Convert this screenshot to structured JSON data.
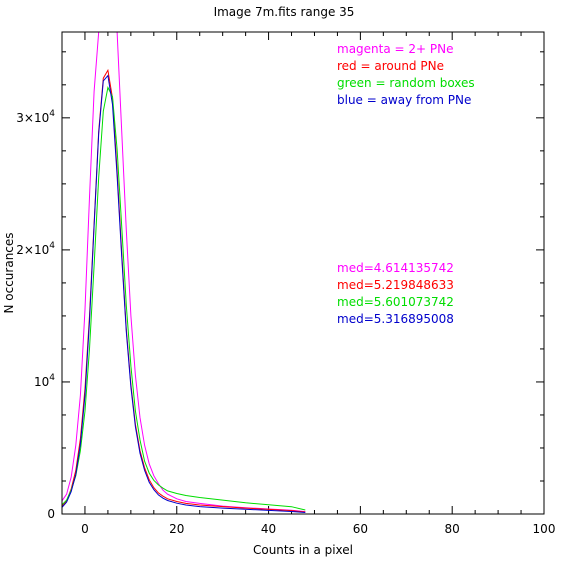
{
  "chart_data": {
    "type": "line",
    "title": "Image 7m.fits   range 35",
    "xlabel": "Counts in a pixel",
    "ylabel": "N occurances",
    "xlim": [
      -5,
      100
    ],
    "ylim": [
      0,
      36500
    ],
    "x_ticks": [
      {
        "value": 0,
        "label": "0"
      },
      {
        "value": 20,
        "label": "20"
      },
      {
        "value": 40,
        "label": "40"
      },
      {
        "value": 60,
        "label": "60"
      },
      {
        "value": 80,
        "label": "80"
      },
      {
        "value": 100,
        "label": "100"
      }
    ],
    "y_ticks": [
      {
        "value": 0,
        "base": "0",
        "exp": ""
      },
      {
        "value": 10000,
        "base": "10",
        "exp": "4"
      },
      {
        "value": 20000,
        "base": "2×10",
        "exp": "4"
      },
      {
        "value": 30000,
        "base": "3×10",
        "exp": "4"
      }
    ],
    "legend": [
      {
        "text": "magenta = 2+ PNe",
        "color": "#ff00ff"
      },
      {
        "text": "red = around PNe",
        "color": "#ff0000"
      },
      {
        "text": "green = random boxes",
        "color": "#00dd00"
      },
      {
        "text": "blue = away from PNe",
        "color": "#0000cc"
      }
    ],
    "medians": [
      {
        "text": "med=4.614135742",
        "color": "#ff00ff"
      },
      {
        "text": "med=5.219848633",
        "color": "#ff0000"
      },
      {
        "text": "med=5.601073742",
        "color": "#00dd00"
      },
      {
        "text": "med=5.316895008",
        "color": "#0000cc"
      }
    ],
    "series": [
      {
        "color": "#ff00ff",
        "x": [
          -5,
          -4,
          -3,
          -2,
          -1,
          0,
          1,
          2,
          3,
          3.5,
          4,
          5,
          6,
          7,
          8,
          9,
          10,
          11,
          12,
          13,
          14,
          15,
          16,
          17,
          18,
          20,
          22,
          25,
          30,
          35,
          40,
          45,
          48
        ],
        "y": [
          1000,
          1500,
          2800,
          5200,
          9000,
          15500,
          24000,
          32000,
          36500,
          40000,
          40000,
          40000,
          40000,
          36500,
          29000,
          21500,
          15000,
          10500,
          7300,
          5200,
          3800,
          2900,
          2300,
          1800,
          1500,
          1150,
          950,
          800,
          600,
          480,
          380,
          280,
          180
        ]
      },
      {
        "color": "#ff0000",
        "x": [
          -5,
          -4,
          -3,
          -2,
          -1,
          0,
          1,
          2,
          3,
          4,
          5,
          6,
          7,
          8,
          9,
          10,
          11,
          12,
          13,
          14,
          15,
          16,
          17,
          18,
          20,
          22,
          25,
          30,
          35,
          40,
          45,
          48
        ],
        "y": [
          600,
          1000,
          1900,
          3300,
          5700,
          9500,
          15000,
          22000,
          29000,
          33000,
          33600,
          31500,
          26000,
          19800,
          14000,
          9800,
          6800,
          4800,
          3500,
          2600,
          2000,
          1600,
          1350,
          1150,
          950,
          800,
          680,
          560,
          450,
          350,
          260,
          150
        ]
      },
      {
        "color": "#00dd00",
        "x": [
          -5,
          -4,
          -3,
          -2,
          -1,
          0,
          1,
          2,
          3,
          4,
          5,
          6,
          7,
          8,
          9,
          10,
          11,
          12,
          13,
          14,
          15,
          16,
          17,
          18,
          20,
          22,
          25,
          30,
          35,
          40,
          45,
          48
        ],
        "y": [
          700,
          1050,
          1800,
          2900,
          4800,
          7800,
          12500,
          18800,
          25500,
          30500,
          32300,
          31600,
          27600,
          21800,
          15800,
          11200,
          7800,
          5600,
          4000,
          3100,
          2550,
          2200,
          1950,
          1750,
          1550,
          1400,
          1250,
          1050,
          850,
          700,
          550,
          300
        ]
      },
      {
        "color": "#0000cc",
        "x": [
          -5,
          -4,
          -3,
          -2,
          -1,
          0,
          1,
          2,
          3,
          4,
          5,
          6,
          7,
          8,
          9,
          10,
          11,
          12,
          13,
          14,
          15,
          16,
          17,
          18,
          20,
          22,
          25,
          30,
          35,
          40,
          45,
          48
        ],
        "y": [
          500,
          900,
          1700,
          3000,
          5300,
          9000,
          14600,
          21800,
          28800,
          32800,
          33200,
          31000,
          25600,
          19500,
          13800,
          9600,
          6600,
          4600,
          3300,
          2400,
          1850,
          1450,
          1200,
          1020,
          820,
          680,
          560,
          450,
          360,
          270,
          190,
          110
        ]
      }
    ]
  }
}
